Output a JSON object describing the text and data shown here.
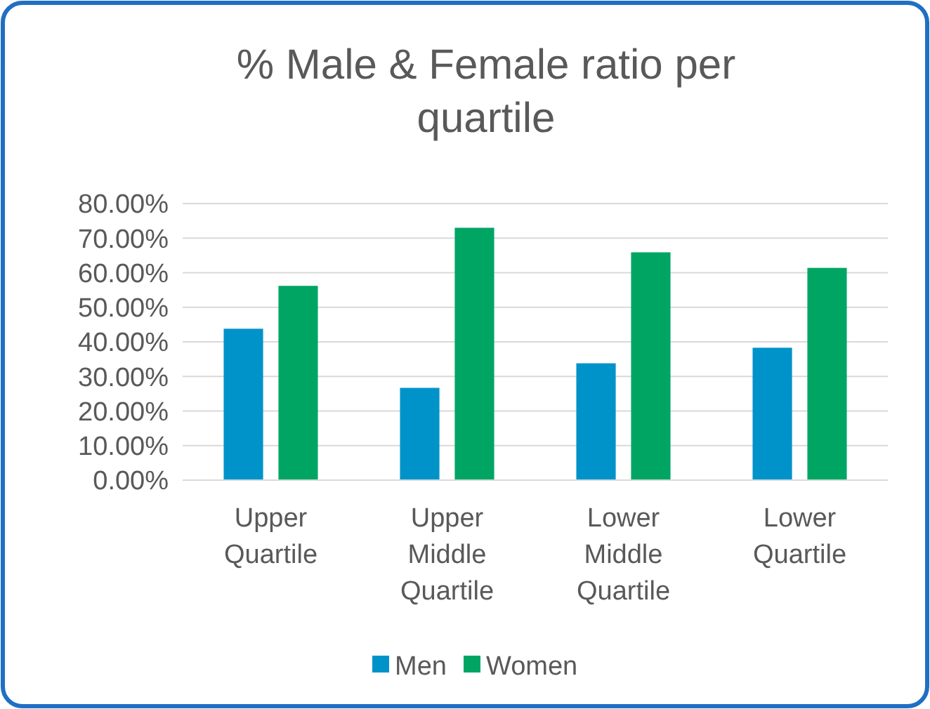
{
  "chart_data": {
    "type": "bar",
    "title": "%  Male & Female ratio per quartile",
    "categories": [
      "Upper Quartile",
      "Upper Middle Quartile",
      "Lower Middle Quartile",
      "Lower Quartile"
    ],
    "series": [
      {
        "name": "Men",
        "color": "#0093c9",
        "values": [
          43.8,
          26.7,
          33.8,
          38.3
        ]
      },
      {
        "name": "Women",
        "color": "#00a564",
        "values": [
          56.2,
          73.0,
          65.9,
          61.4
        ]
      }
    ],
    "ylim": [
      0,
      80
    ],
    "yticks": [
      {
        "value": 0,
        "label": "0.00%"
      },
      {
        "value": 10,
        "label": "10.00%"
      },
      {
        "value": 20,
        "label": "20.00%"
      },
      {
        "value": 30,
        "label": "30.00%"
      },
      {
        "value": 40,
        "label": "40.00%"
      },
      {
        "value": 50,
        "label": "50.00%"
      },
      {
        "value": 60,
        "label": "60.00%"
      },
      {
        "value": 70,
        "label": "70.00%"
      },
      {
        "value": 80,
        "label": "80.00%"
      }
    ],
    "grid": "y",
    "legend": "bottom"
  }
}
